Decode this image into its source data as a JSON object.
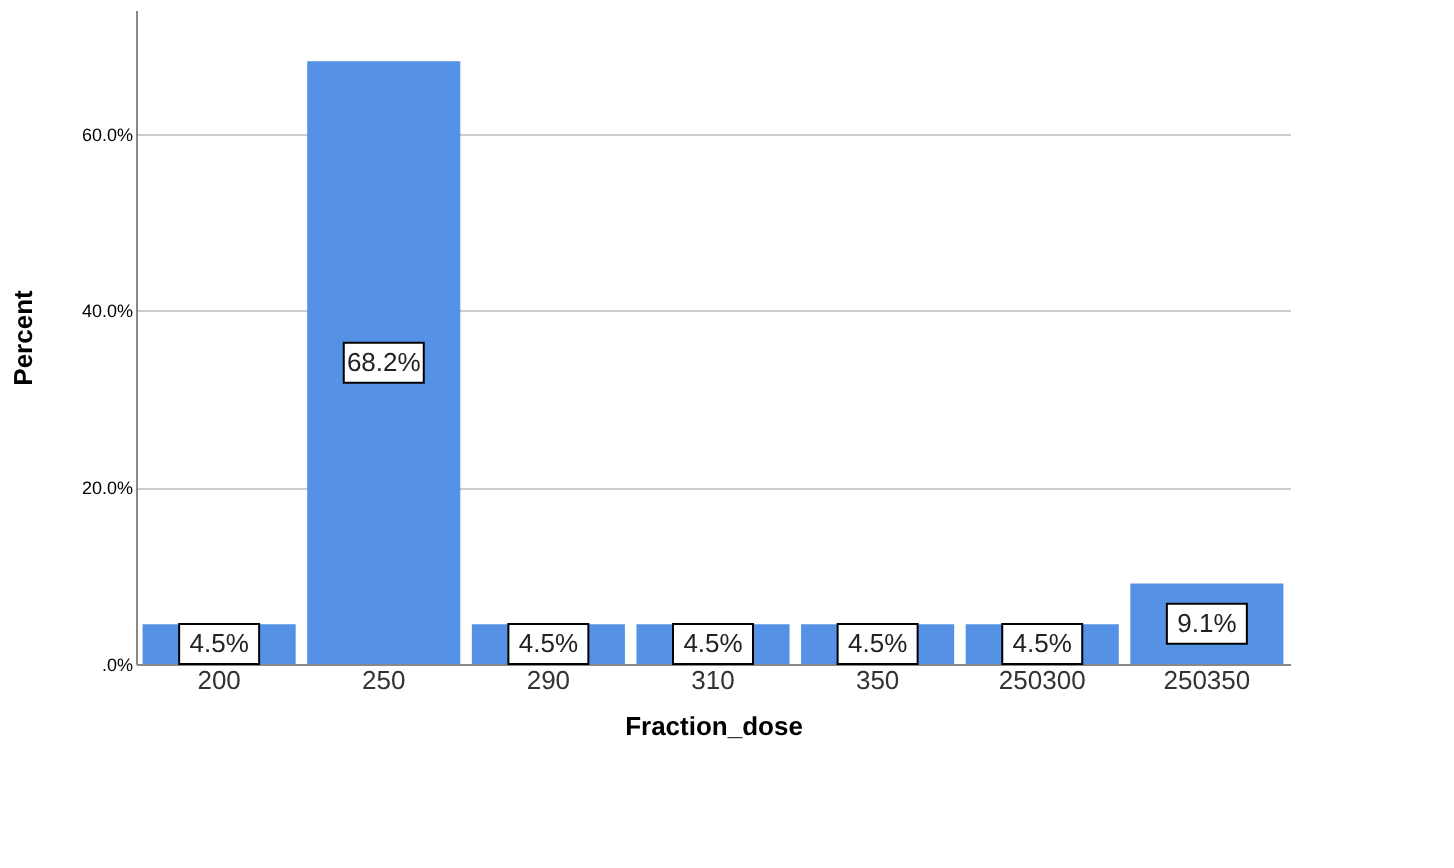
{
  "chart_data": {
    "type": "bar",
    "xlabel": "Fraction_dose",
    "ylabel": "Percent",
    "categories": [
      "200",
      "250",
      "290",
      "310",
      "350",
      "250300",
      "250350"
    ],
    "values": [
      4.5,
      68.2,
      4.5,
      4.5,
      4.5,
      4.5,
      9.1
    ],
    "value_labels": [
      "4.5%",
      "68.2%",
      "4.5%",
      "4.5%",
      "4.5%",
      "4.5%",
      "9.1%"
    ],
    "color": "#5592e5",
    "ylim": [
      0,
      74
    ],
    "yticks": [
      {
        "value": 0,
        "label": ".0%"
      },
      {
        "value": 20,
        "label": "20.0%"
      },
      {
        "value": 40,
        "label": "40.0%"
      },
      {
        "value": 60,
        "label": "60.0%"
      }
    ],
    "grid": "y"
  }
}
